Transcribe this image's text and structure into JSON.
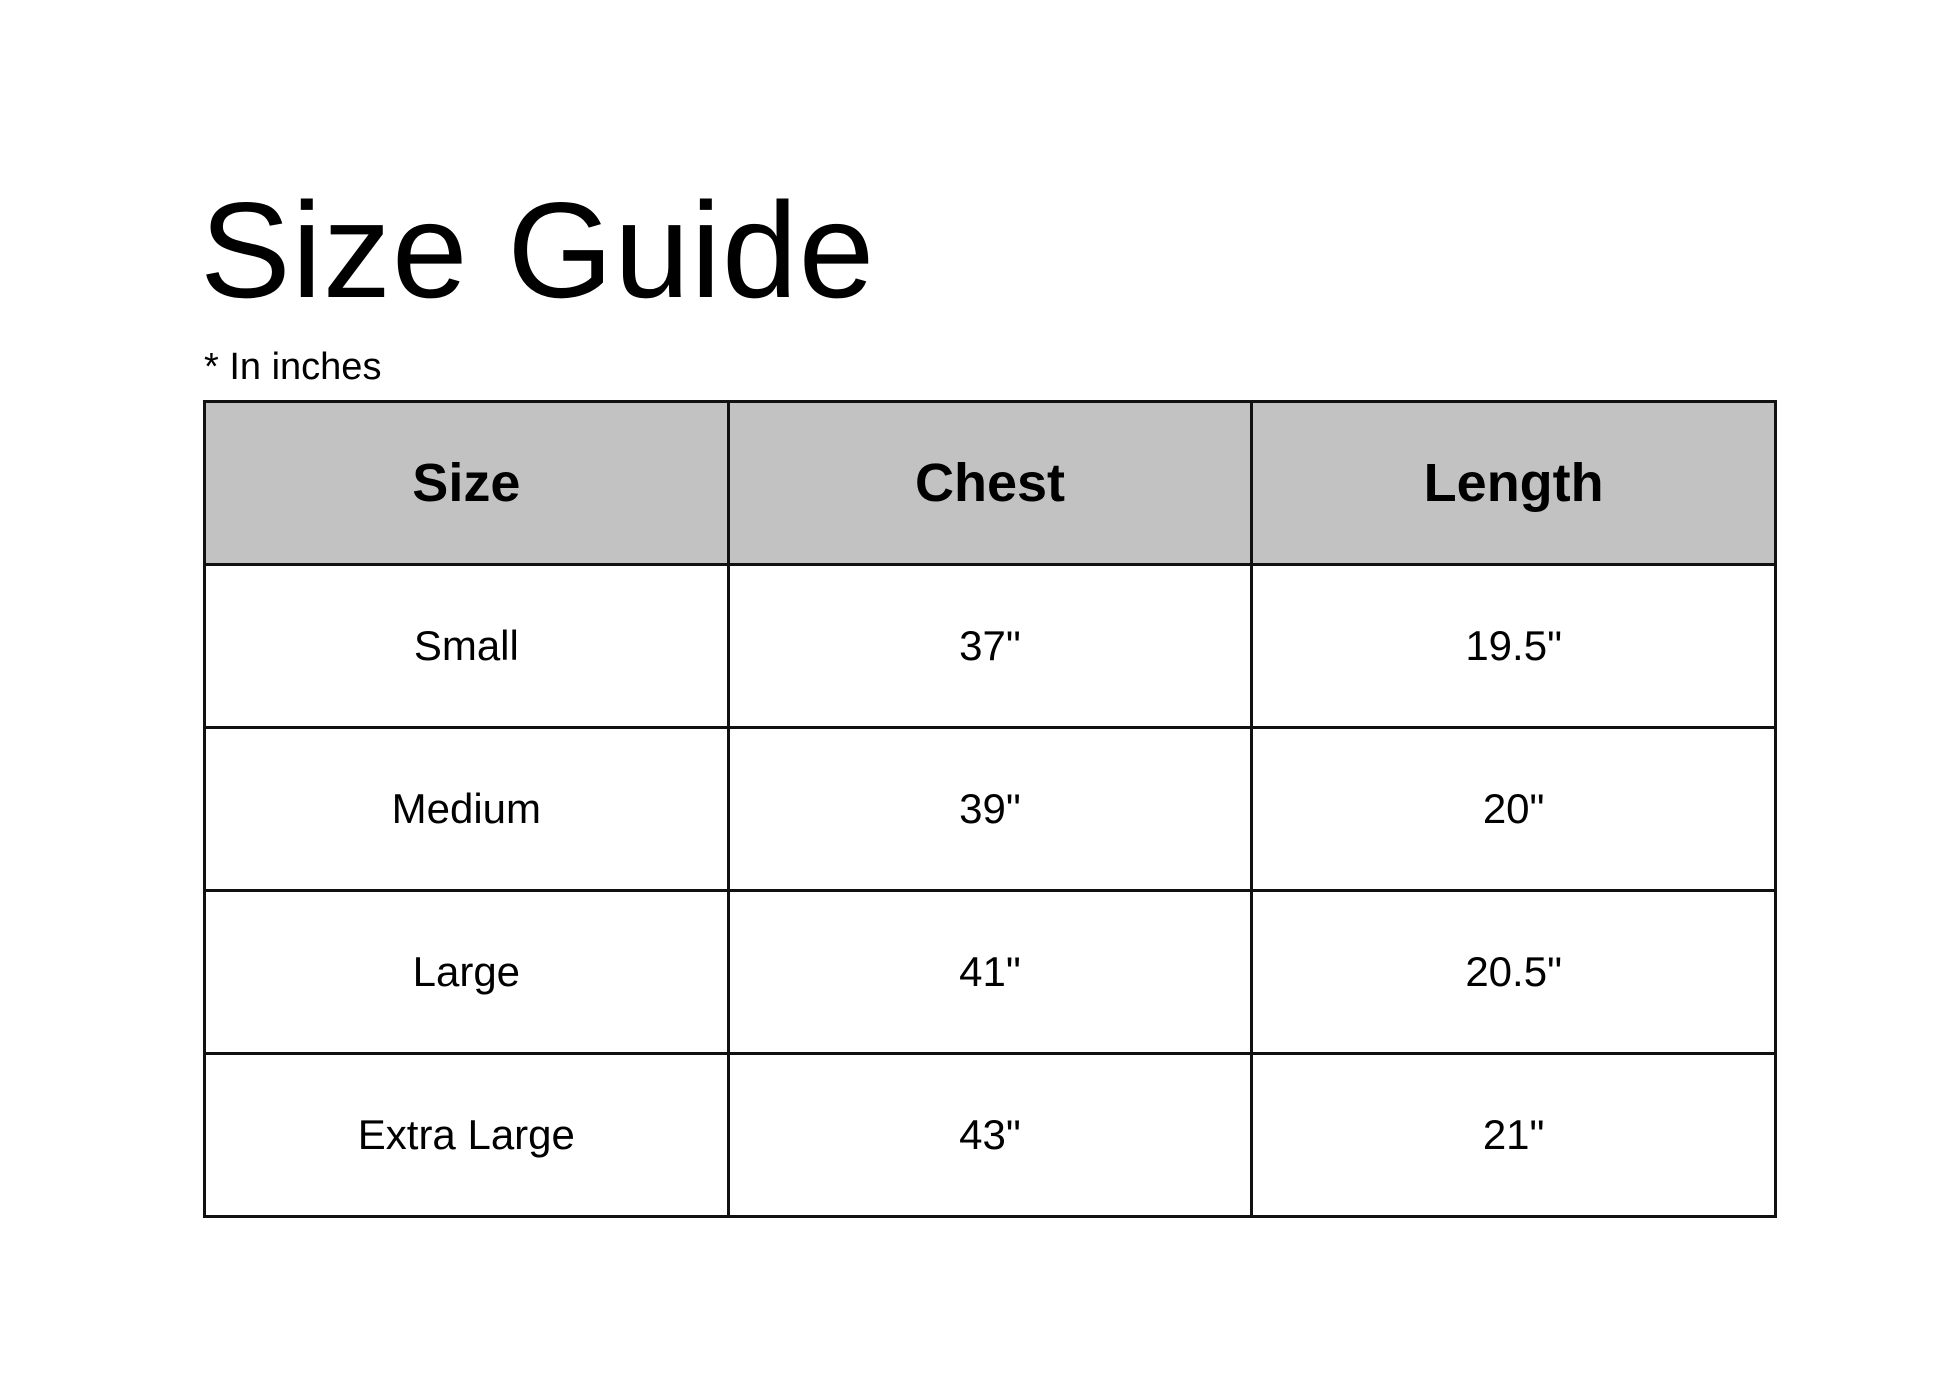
{
  "title": "Size Guide",
  "subtitle": "* In inches",
  "colors": {
    "header_bg": "#c2c2c2",
    "border": "#111111"
  },
  "table": {
    "headers": [
      "Size",
      "Chest",
      "Length"
    ],
    "rows": [
      [
        "Small",
        "37\"",
        "19.5\""
      ],
      [
        "Medium",
        "39\"",
        "20\""
      ],
      [
        "Large",
        "41\"",
        "20.5\""
      ],
      [
        "Extra Large",
        "43\"",
        "21\""
      ]
    ]
  }
}
